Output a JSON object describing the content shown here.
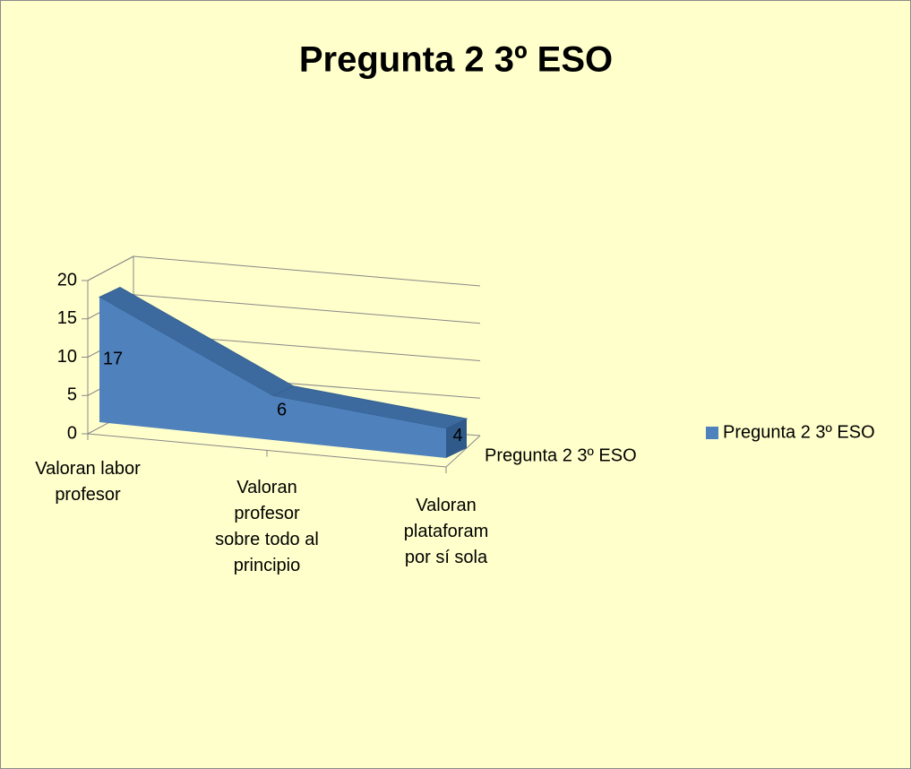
{
  "chart_data": {
    "type": "area3d",
    "title": "Pregunta 2 3º ESO",
    "categories": [
      "Valoran labor profesor",
      "Valoran profesor sobre todo al principio",
      "Valoran plataforam por sí sola"
    ],
    "series": [
      {
        "name": "Pregunta 2 3º ESO",
        "color": "#4f81bd",
        "values": [
          17,
          6,
          4
        ]
      }
    ],
    "ylim": [
      0,
      20
    ],
    "yticks": [
      0,
      5,
      10,
      15,
      20
    ],
    "grid": true,
    "legend": "right"
  }
}
